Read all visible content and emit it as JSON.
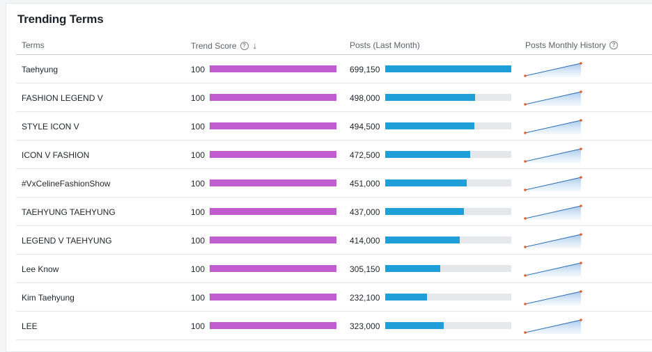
{
  "title": "Trending Terms",
  "columns": {
    "terms": "Terms",
    "trend_score": "Trend Score",
    "posts": "Posts (Last Month)",
    "history": "Posts Monthly History"
  },
  "colors": {
    "trend_bar": "#c05ed1",
    "posts_bar": "#1e9fd8",
    "track": "#e5e7ea",
    "spark_line": "#2b6cb0",
    "spark_dot": "#e0602f"
  },
  "rows": [
    {
      "term": "Taehyung",
      "score": "100",
      "score_fraction": 1.0,
      "posts": "699,150",
      "posts_value": 699150
    },
    {
      "term": "FASHION LEGEND V",
      "score": "100",
      "score_fraction": 1.0,
      "posts": "498,000",
      "posts_value": 498000
    },
    {
      "term": "STYLE ICON V",
      "score": "100",
      "score_fraction": 1.0,
      "posts": "494,500",
      "posts_value": 494500
    },
    {
      "term": "ICON V FASHION",
      "score": "100",
      "score_fraction": 1.0,
      "posts": "472,500",
      "posts_value": 472500
    },
    {
      "term": "#VxCelineFashionShow",
      "score": "100",
      "score_fraction": 1.0,
      "posts": "451,000",
      "posts_value": 451000
    },
    {
      "term": "TAEHYUNG TAEHYUNG",
      "score": "100",
      "score_fraction": 1.0,
      "posts": "437,000",
      "posts_value": 437000
    },
    {
      "term": "LEGEND V TAEHYUNG",
      "score": "100",
      "score_fraction": 1.0,
      "posts": "414,000",
      "posts_value": 414000
    },
    {
      "term": "Lee Know",
      "score": "100",
      "score_fraction": 1.0,
      "posts": "305,150",
      "posts_value": 305150
    },
    {
      "term": "Kim Taehyung",
      "score": "100",
      "score_fraction": 1.0,
      "posts": "232,100",
      "posts_value": 232100
    },
    {
      "term": "LEE",
      "score": "100",
      "score_fraction": 1.0,
      "posts": "323,000",
      "posts_value": 323000
    }
  ],
  "posts_max": 699150
}
